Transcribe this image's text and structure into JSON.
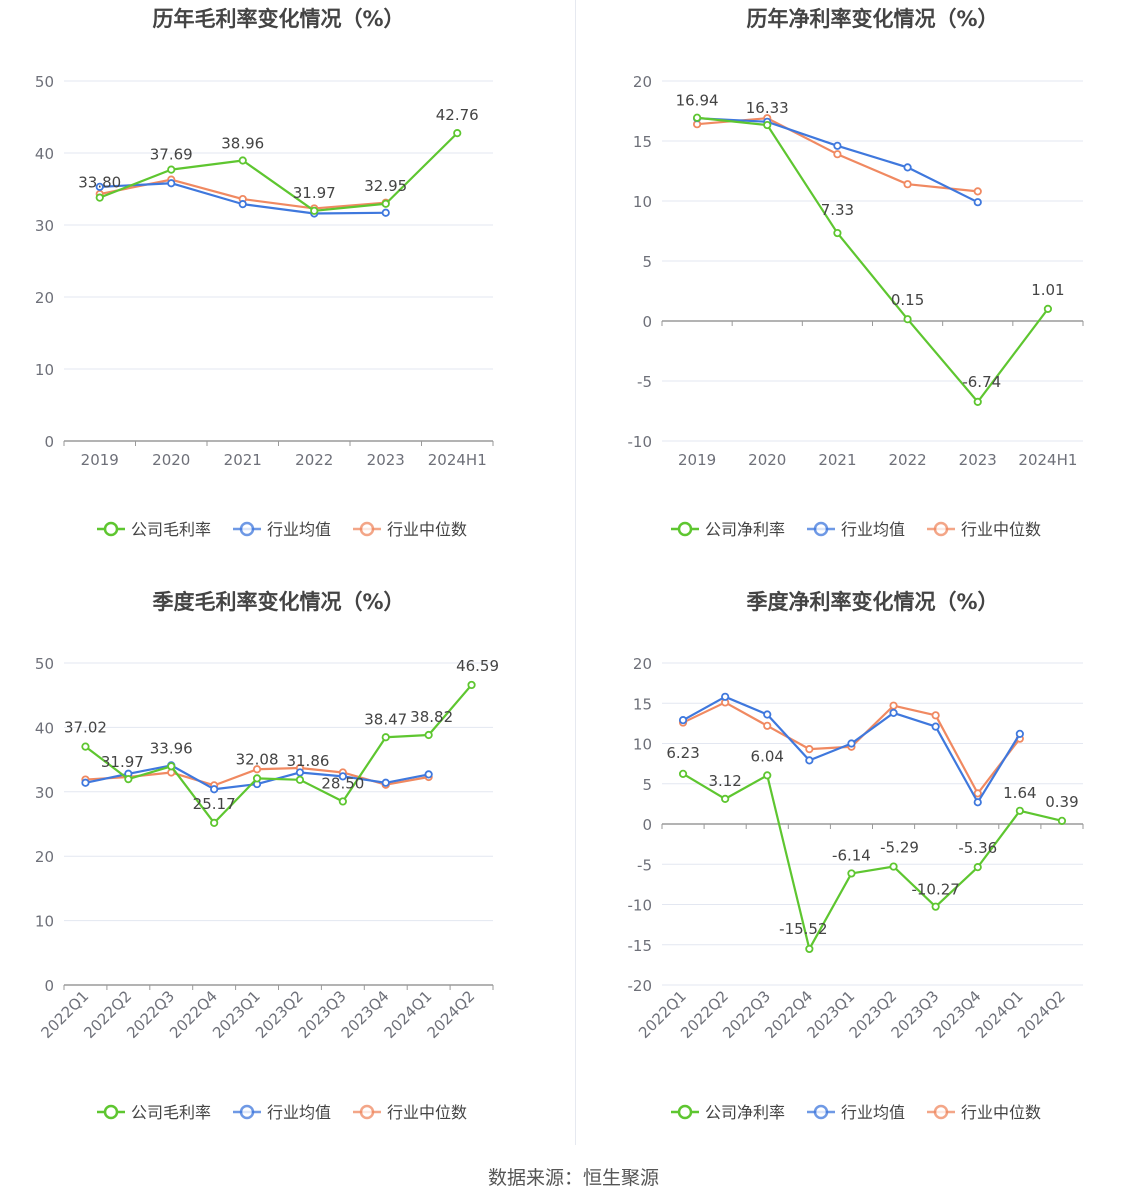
{
  "footer": "数据来源：恒生聚源",
  "colors": {
    "company": "#5ec630",
    "avg": "#3f78dd",
    "median": "#f08961"
  },
  "chart_data": [
    {
      "type": "line",
      "title": "历年毛利率变化情况（%）",
      "categories": [
        "2019",
        "2020",
        "2021",
        "2022",
        "2023",
        "2024H1"
      ],
      "ylim": [
        0,
        50
      ],
      "yticks": [
        0,
        10,
        20,
        30,
        40,
        50
      ],
      "legend_position": "bottom-center",
      "series": [
        {
          "name": "公司毛利率",
          "values": [
            33.8,
            37.69,
            38.96,
            31.97,
            32.95,
            42.76
          ],
          "labels": [
            "33.80",
            "37.69",
            "38.96",
            "31.97",
            "32.95",
            "42.76"
          ]
        },
        {
          "name": "行业均值",
          "values": [
            35.3,
            35.8,
            32.9,
            31.6,
            31.7,
            null
          ]
        },
        {
          "name": "行业中位数",
          "values": [
            34.3,
            36.3,
            33.6,
            32.3,
            33.1,
            null
          ]
        }
      ]
    },
    {
      "type": "line",
      "title": "历年净利率变化情况（%）",
      "categories": [
        "2019",
        "2020",
        "2021",
        "2022",
        "2023",
        "2024H1"
      ],
      "ylim": [
        -10,
        20
      ],
      "yticks": [
        -10,
        -5,
        0,
        5,
        10,
        15,
        20
      ],
      "legend_position": "bottom-center",
      "series": [
        {
          "name": "公司净利率",
          "values": [
            16.94,
            16.33,
            7.33,
            0.15,
            -6.74,
            1.01
          ],
          "labels": [
            "16.94",
            "16.33",
            "7.33",
            "0.15",
            "-6.74",
            "1.01"
          ]
        },
        {
          "name": "行业均值",
          "values": [
            16.9,
            16.6,
            14.6,
            12.8,
            9.9,
            null
          ]
        },
        {
          "name": "行业中位数",
          "values": [
            16.4,
            16.9,
            13.9,
            11.4,
            10.8,
            null
          ]
        }
      ]
    },
    {
      "type": "line",
      "title": "季度毛利率变化情况（%）",
      "categories": [
        "2022Q1",
        "2022Q2",
        "2022Q3",
        "2022Q4",
        "2023Q1",
        "2023Q2",
        "2023Q3",
        "2023Q4",
        "2024Q1",
        "2024Q2"
      ],
      "ylim": [
        0,
        50
      ],
      "yticks": [
        0,
        10,
        20,
        30,
        40,
        50
      ],
      "legend_position": "bottom-center",
      "series": [
        {
          "name": "公司毛利率",
          "values": [
            37.02,
            31.97,
            33.96,
            25.17,
            32.08,
            31.86,
            28.5,
            38.47,
            38.82,
            46.59
          ],
          "labels": [
            "37.02",
            "31.97",
            "33.96",
            "25.17",
            "32.08",
            "31.86",
            "28.50",
            "38.47",
            "38.82",
            "46.59"
          ]
        },
        {
          "name": "行业均值",
          "values": [
            31.4,
            32.8,
            34.1,
            30.4,
            31.2,
            33.0,
            32.4,
            31.4,
            32.7,
            null
          ]
        },
        {
          "name": "行业中位数",
          "values": [
            31.9,
            32.3,
            33.0,
            31.0,
            33.5,
            33.7,
            33.0,
            31.1,
            32.3,
            null
          ]
        }
      ]
    },
    {
      "type": "line",
      "title": "季度净利率变化情况（%）",
      "categories": [
        "2022Q1",
        "2022Q2",
        "2022Q3",
        "2022Q4",
        "2023Q1",
        "2023Q2",
        "2023Q3",
        "2023Q4",
        "2024Q1",
        "2024Q2"
      ],
      "ylim": [
        -20,
        20
      ],
      "yticks": [
        -20,
        -15,
        -10,
        -5,
        0,
        5,
        10,
        15,
        20
      ],
      "legend_position": "bottom-center",
      "series": [
        {
          "name": "公司净利率",
          "values": [
            6.23,
            3.12,
            6.04,
            -15.52,
            -6.14,
            -5.29,
            -10.27,
            -5.36,
            1.64,
            0.39
          ],
          "labels": [
            "6.23",
            "3.12",
            "6.04",
            "-15.52",
            "-6.14",
            "-5.29",
            "-10.27",
            "-5.36",
            "1.64",
            "0.39"
          ]
        },
        {
          "name": "行业均值",
          "values": [
            12.9,
            15.8,
            13.6,
            7.9,
            10.0,
            13.8,
            12.1,
            2.7,
            11.2,
            null
          ]
        },
        {
          "name": "行业中位数",
          "values": [
            12.6,
            15.1,
            12.2,
            9.3,
            9.6,
            14.7,
            13.5,
            3.8,
            10.6,
            null
          ]
        }
      ]
    }
  ]
}
